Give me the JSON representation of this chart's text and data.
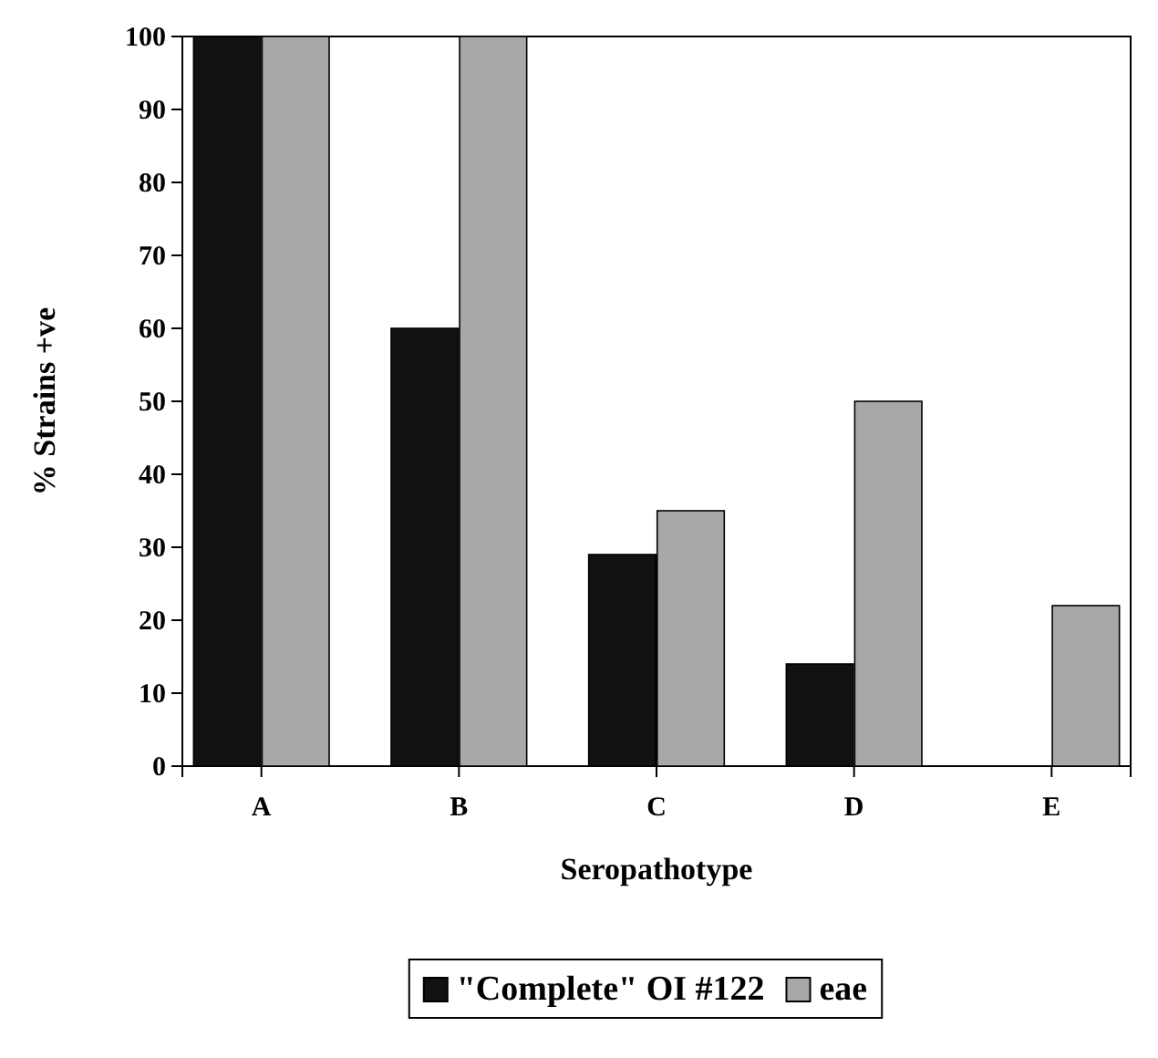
{
  "chart_data": {
    "type": "bar",
    "xlabel": "Seropathotype",
    "ylabel": "% Strains +ve",
    "categories": [
      "A",
      "B",
      "C",
      "D",
      "E"
    ],
    "series": [
      {
        "name": "\"Complete\" OI #122",
        "color": "#111111",
        "values": [
          100,
          60,
          29,
          14,
          0
        ]
      },
      {
        "name": "eae",
        "color": "#a8a8a8",
        "values": [
          100,
          100,
          35,
          50,
          22
        ]
      }
    ],
    "ylim": [
      0,
      100
    ],
    "yticks": [
      0,
      10,
      20,
      30,
      40,
      50,
      60,
      70,
      80,
      90,
      100
    ],
    "legend": "bottom",
    "grid": false
  }
}
